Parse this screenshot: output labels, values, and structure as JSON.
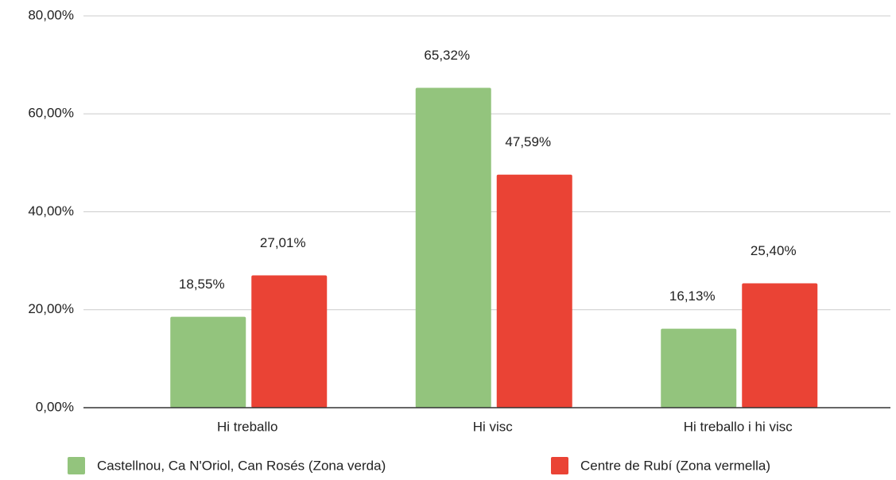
{
  "chart_data": {
    "type": "bar",
    "categories": [
      "Hi treballo",
      "Hi visc",
      "Hi treballo i hi visc"
    ],
    "series": [
      {
        "name": "Castellnou, Ca N'Oriol, Can Rosés (Zona verda)",
        "color": "#93c47d",
        "values": [
          18.55,
          65.32,
          16.13
        ],
        "value_labels": [
          "18,55%",
          "65,32%",
          "16,13%"
        ]
      },
      {
        "name": "Centre de Rubí (Zona vermella)",
        "color": "#ea4335",
        "values": [
          27.01,
          47.59,
          25.4
        ],
        "value_labels": [
          "27,01%",
          "47,59%",
          "25,40%"
        ]
      }
    ],
    "ylim": [
      0,
      80
    ],
    "yticks": [
      {
        "value": 0,
        "label": "0,00%"
      },
      {
        "value": 20,
        "label": "20,00%"
      },
      {
        "value": 40,
        "label": "40,00%"
      },
      {
        "value": 60,
        "label": "60,00%"
      },
      {
        "value": 80,
        "label": "80,00%"
      }
    ],
    "grid": true,
    "legend": "bottom"
  }
}
